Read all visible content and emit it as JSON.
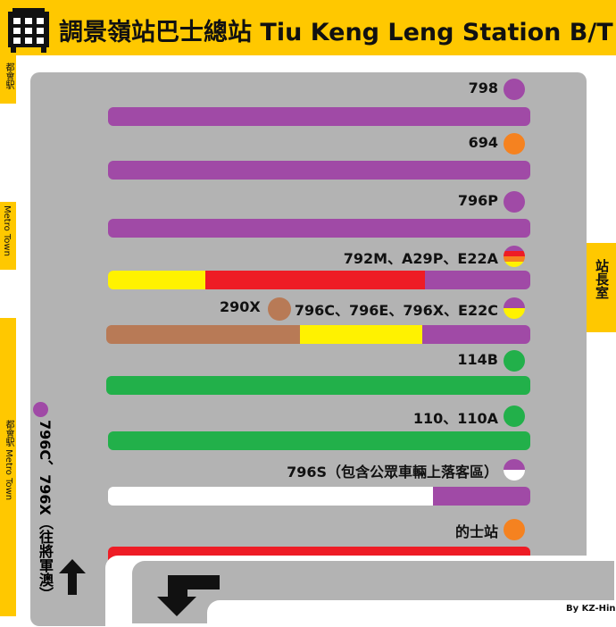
{
  "header": {
    "title": "調景嶺站巴士總站 Tiu Keng Leng Station B/T",
    "icon": "bus-icon"
  },
  "side_labels": {
    "left_top": "都會駅",
    "left_mid": "Metro Town",
    "left_bottom": "都會駅 Metro Town",
    "right": "站長室"
  },
  "side_route": {
    "label": "796C、796X（往將軍澳）",
    "color": "#a04aa6"
  },
  "colors": {
    "purple": "#a04aa6",
    "orange": "#f58220",
    "red": "#ee1c25",
    "yellow": "#fff200",
    "brown": "#b87a56",
    "green": "#22b04a",
    "white": "#ffffff",
    "grey": "#b3b3b3",
    "header_yellow": "#ffc800"
  },
  "stands": [
    {
      "label": "798",
      "dot": [
        "#a04aa6"
      ],
      "segments": [
        [
          "#a04aa6",
          1
        ]
      ]
    },
    {
      "label": "694",
      "dot": [
        "#f58220"
      ],
      "segments": [
        [
          "#a04aa6",
          1
        ]
      ]
    },
    {
      "label": "796P",
      "dot": [
        "#a04aa6"
      ],
      "segments": [
        [
          "#a04aa6",
          1
        ]
      ]
    },
    {
      "label": "792M、A29P、E22A",
      "dot": [
        "#a04aa6",
        "#ee1c25",
        "#f58220",
        "#fff200"
      ],
      "segments": [
        [
          "#fff200",
          0.23
        ],
        [
          "#ee1c25",
          0.52
        ],
        [
          "#a04aa6",
          0.25
        ]
      ]
    },
    {
      "label": "796C、796E、796X、E22C",
      "extra_label": "290X",
      "extra_dot": "#b87a56",
      "dot": [
        "#a04aa6",
        "#fff200"
      ],
      "segments": [
        [
          "#b87a56",
          0.456
        ],
        [
          "#fff200",
          0.29
        ],
        [
          "#a04aa6",
          0.254
        ]
      ]
    },
    {
      "label": "114B",
      "dot": [
        "#22b04a"
      ],
      "segments": [
        [
          "#22b04a",
          1
        ]
      ]
    },
    {
      "label": "110、110A",
      "dot": [
        "#22b04a"
      ],
      "segments": [
        [
          "#22b04a",
          1
        ]
      ]
    },
    {
      "label": "796S（包含公眾車輛上落客區）",
      "dot": [
        "#a04aa6",
        "#ffffff"
      ],
      "segments": [
        [
          "#ffffff",
          0.77
        ],
        [
          "#a04aa6",
          0.23
        ]
      ]
    },
    {
      "label": "的士站",
      "dot": [
        "#f58220"
      ],
      "segments": [
        [
          "#ee1c25",
          1
        ]
      ]
    }
  ],
  "credit": "By KZ-Hin"
}
